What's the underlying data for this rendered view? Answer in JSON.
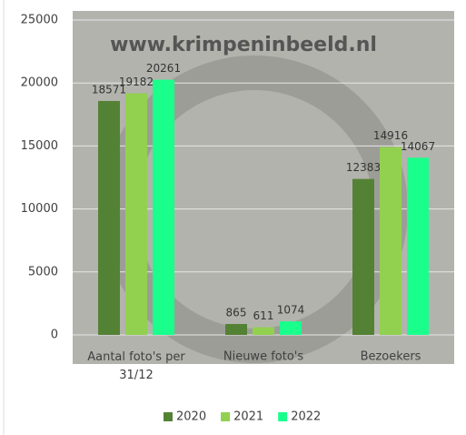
{
  "chart_data": {
    "type": "bar",
    "watermark": "www.krimpeninbeeld.nl",
    "categories": [
      "Aantal foto's per 31/12",
      "Nieuwe foto's",
      "Bezoekers"
    ],
    "series": [
      {
        "name": "2020",
        "color": "#548235",
        "values": [
          18571,
          865,
          12383
        ]
      },
      {
        "name": "2021",
        "color": "#92d050",
        "values": [
          19182,
          611,
          14916
        ]
      },
      {
        "name": "2022",
        "color": "#1aff8c",
        "values": [
          20261,
          1074,
          14067
        ]
      }
    ],
    "ylim": [
      0,
      25000
    ],
    "yticks": [
      0,
      5000,
      10000,
      15000,
      20000,
      25000
    ],
    "grid": true,
    "legend": "bottom"
  }
}
